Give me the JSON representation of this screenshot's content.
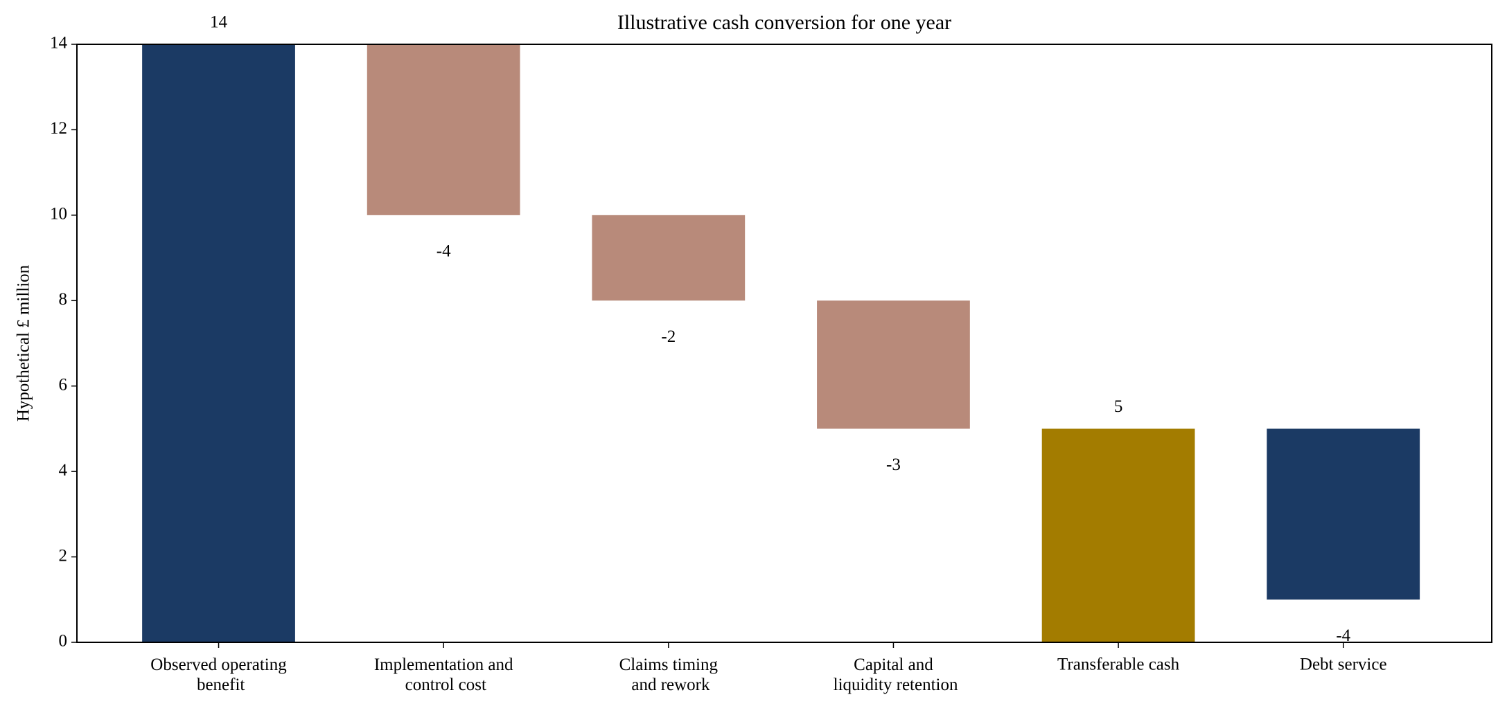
{
  "chart_data": {
    "type": "waterfall",
    "title": "Illustrative cash conversion for one year",
    "ylabel": "Hypothetical £ million",
    "categories": [
      "Observed operating\nbenefit",
      "Implementation and\ncontrol cost",
      "Claims timing\nand rework",
      "Capital and\nliquidity retention",
      "Transferable cash",
      "Debt service"
    ],
    "values": [
      14,
      -4,
      -2,
      -3,
      5,
      -4
    ],
    "total_indices": [
      4
    ],
    "colors": [
      "#1b3a64",
      "#b88a7a",
      "#b88a7a",
      "#b88a7a",
      "#a37c00",
      "#1b3a64"
    ],
    "ylim": [
      0,
      14
    ],
    "yticks": [
      0,
      2,
      4,
      6,
      8,
      10,
      12,
      14
    ],
    "grid": false
  }
}
